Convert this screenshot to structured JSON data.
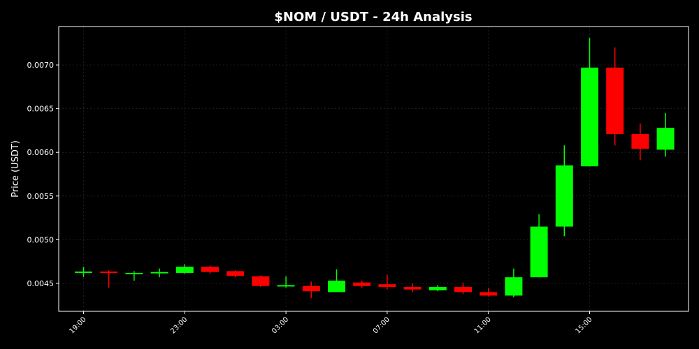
{
  "chart_data": {
    "type": "candlestick",
    "title": "$NOM / USDT - 24h Analysis",
    "xlabel": "",
    "ylabel": "Price (USDT)",
    "ylim": [
      0.00418,
      0.00744
    ],
    "y_ticks": [
      "0.0045",
      "0.0050",
      "0.0055",
      "0.0060",
      "0.0065",
      "0.0070"
    ],
    "x_ticks": [
      "19:00",
      "23:00",
      "03:00",
      "07:00",
      "11:00",
      "15:00"
    ],
    "x_tick_index": [
      0,
      4,
      8,
      12,
      16,
      20
    ],
    "grid": true,
    "colors": {
      "up": "#00ff00",
      "down": "#ff0000",
      "background": "#000000",
      "axes": "#ffffff"
    },
    "candles": [
      {
        "time": "19:00",
        "open": 0.004625,
        "high": 0.00469,
        "low": 0.00457,
        "close": 0.004635
      },
      {
        "time": "20:00",
        "open": 0.004635,
        "high": 0.00465,
        "low": 0.00445,
        "close": 0.00462
      },
      {
        "time": "21:00",
        "open": 0.00461,
        "high": 0.00464,
        "low": 0.00453,
        "close": 0.00462
      },
      {
        "time": "22:00",
        "open": 0.004615,
        "high": 0.00467,
        "low": 0.00457,
        "close": 0.00463
      },
      {
        "time": "23:00",
        "open": 0.00462,
        "high": 0.00472,
        "low": 0.00461,
        "close": 0.00469
      },
      {
        "time": "00:00",
        "open": 0.00469,
        "high": 0.004705,
        "low": 0.00461,
        "close": 0.00463
      },
      {
        "time": "01:00",
        "open": 0.00464,
        "high": 0.00465,
        "low": 0.00457,
        "close": 0.004585
      },
      {
        "time": "02:00",
        "open": 0.00458,
        "high": 0.00459,
        "low": 0.00446,
        "close": 0.00447
      },
      {
        "time": "03:00",
        "open": 0.004465,
        "high": 0.00458,
        "low": 0.00445,
        "close": 0.00448
      },
      {
        "time": "04:00",
        "open": 0.00447,
        "high": 0.00452,
        "low": 0.00433,
        "close": 0.00441
      },
      {
        "time": "05:00",
        "open": 0.0044,
        "high": 0.00466,
        "low": 0.0044,
        "close": 0.00453
      },
      {
        "time": "06:00",
        "open": 0.00451,
        "high": 0.00453,
        "low": 0.00445,
        "close": 0.00447
      },
      {
        "time": "07:00",
        "open": 0.00449,
        "high": 0.0046,
        "low": 0.00443,
        "close": 0.00446
      },
      {
        "time": "08:00",
        "open": 0.00446,
        "high": 0.0045,
        "low": 0.0044,
        "close": 0.00443
      },
      {
        "time": "09:00",
        "open": 0.00442,
        "high": 0.00448,
        "low": 0.00441,
        "close": 0.00446
      },
      {
        "time": "10:00",
        "open": 0.00446,
        "high": 0.00451,
        "low": 0.00438,
        "close": 0.0044
      },
      {
        "time": "11:00",
        "open": 0.0044,
        "high": 0.00445,
        "low": 0.00435,
        "close": 0.00436
      },
      {
        "time": "12:00",
        "open": 0.00436,
        "high": 0.00467,
        "low": 0.00434,
        "close": 0.00457
      },
      {
        "time": "13:00",
        "open": 0.00457,
        "high": 0.00529,
        "low": 0.00457,
        "close": 0.00515
      },
      {
        "time": "14:00",
        "open": 0.00515,
        "high": 0.00608,
        "low": 0.00504,
        "close": 0.00585
      },
      {
        "time": "15:00",
        "open": 0.00584,
        "high": 0.00731,
        "low": 0.00584,
        "close": 0.00697
      },
      {
        "time": "16:00",
        "open": 0.00697,
        "high": 0.0072,
        "low": 0.00608,
        "close": 0.00621
      },
      {
        "time": "17:00",
        "open": 0.00621,
        "high": 0.00633,
        "low": 0.00591,
        "close": 0.00604
      },
      {
        "time": "18:00",
        "open": 0.00603,
        "high": 0.00645,
        "low": 0.00595,
        "close": 0.00628
      }
    ]
  }
}
